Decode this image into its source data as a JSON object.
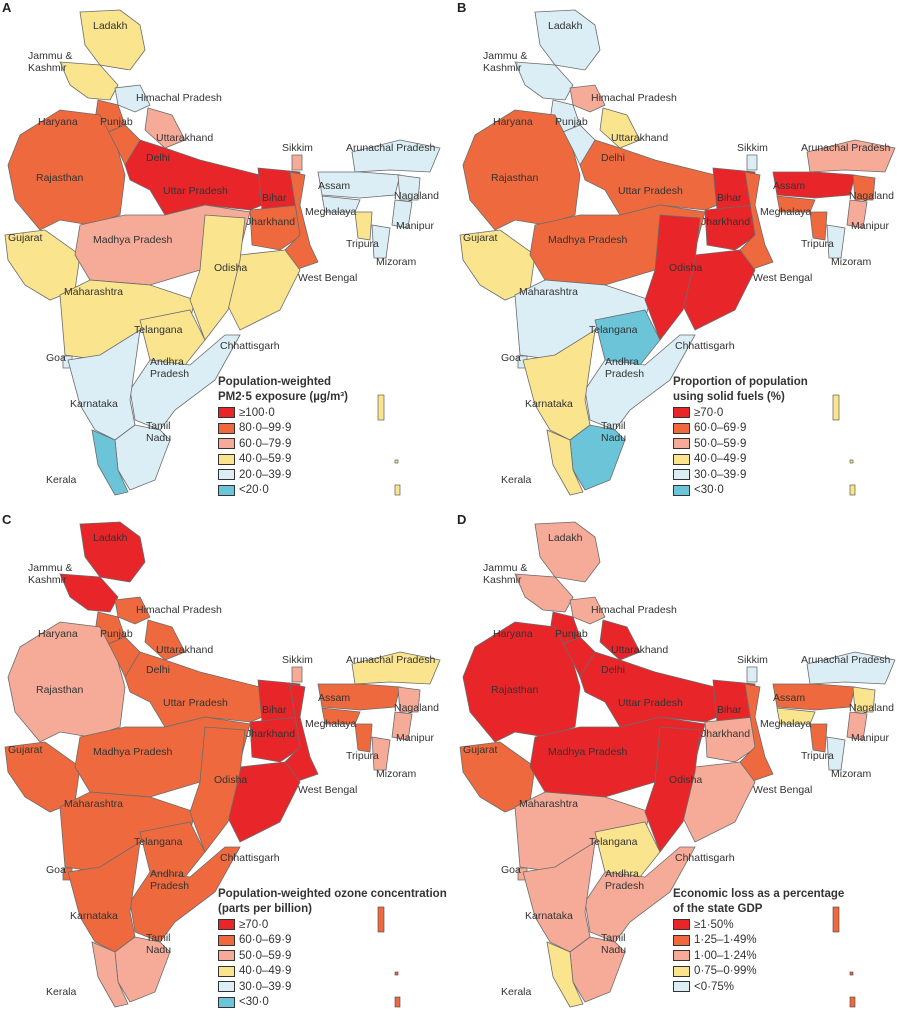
{
  "colors": [
    "#e8262a",
    "#ee6a3e",
    "#f6ab98",
    "#fae48e",
    "#dbeef5",
    "#6cc4d9"
  ],
  "states": [
    "Ladakh",
    "Jammu & Kashmir",
    "Himachal Pradesh",
    "Punjab",
    "Haryana",
    "Delhi",
    "Uttarakhand",
    "Rajasthan",
    "Uttar Pradesh",
    "Bihar",
    "Jharkhand",
    "West Bengal",
    "Sikkim",
    "Arunachal Pradesh",
    "Assam",
    "Nagaland",
    "Meghalaya",
    "Manipur",
    "Tripura",
    "Mizoram",
    "Gujarat",
    "Madhya Pradesh",
    "Odisha",
    "Maharashtra",
    "Chhattisgarh",
    "Telangana",
    "Goa",
    "Andhra Pradesh",
    "Karnataka",
    "Tamil Nadu",
    "Kerala"
  ],
  "panels": [
    {
      "letter": "A",
      "legend_title": [
        "Population-weighted",
        "PM2·5 exposure (µg/m³)"
      ],
      "legend": [
        "≥100·0",
        "80·0–99·9",
        "60·0–79·9",
        "40·0–59·9",
        "20·0–39·9",
        "<20·0"
      ],
      "classes": [
        3,
        3,
        4,
        1,
        1,
        0,
        2,
        1,
        0,
        0,
        1,
        1,
        2,
        4,
        4,
        4,
        4,
        4,
        3,
        4,
        3,
        2,
        3,
        3,
        3,
        3,
        4,
        4,
        4,
        4,
        5
      ]
    },
    {
      "letter": "B",
      "legend_title": [
        "Proportion of population",
        "using solid fuels (%)"
      ],
      "legend": [
        "≥70·0",
        "60·0–69·9",
        "50·0–59·9",
        "40·0–49·9",
        "30·0–39·9",
        "<30·0"
      ],
      "classes": [
        4,
        4,
        2,
        4,
        4,
        5,
        3,
        1,
        1,
        0,
        0,
        1,
        4,
        2,
        0,
        1,
        1,
        2,
        1,
        4,
        3,
        1,
        0,
        4,
        0,
        5,
        4,
        4,
        3,
        5,
        3
      ]
    },
    {
      "letter": "C",
      "legend_title": [
        "Population-weighted ozone concentration",
        "(parts per billion)"
      ],
      "legend": [
        "≥70·0",
        "60·0–69·9",
        "50·0–59·9",
        "40·0–49·9",
        "30·0–39·9",
        "<30·0"
      ],
      "classes": [
        0,
        0,
        1,
        1,
        1,
        1,
        1,
        2,
        1,
        0,
        0,
        0,
        2,
        3,
        1,
        2,
        1,
        2,
        1,
        2,
        1,
        1,
        0,
        1,
        1,
        1,
        1,
        1,
        1,
        2,
        2
      ]
    },
    {
      "letter": "D",
      "legend_title": [
        "Economic loss as a percentage",
        "of the state GDP"
      ],
      "legend": [
        "≥1·50%",
        "1·25–1·49%",
        "1·00–1·24%",
        "0·75–0·99%",
        "<0·75%"
      ],
      "classes": [
        2,
        2,
        2,
        0,
        0,
        0,
        0,
        0,
        0,
        0,
        2,
        1,
        4,
        4,
        1,
        3,
        3,
        2,
        1,
        4,
        1,
        0,
        2,
        2,
        0,
        3,
        2,
        2,
        2,
        2,
        3
      ]
    }
  ]
}
